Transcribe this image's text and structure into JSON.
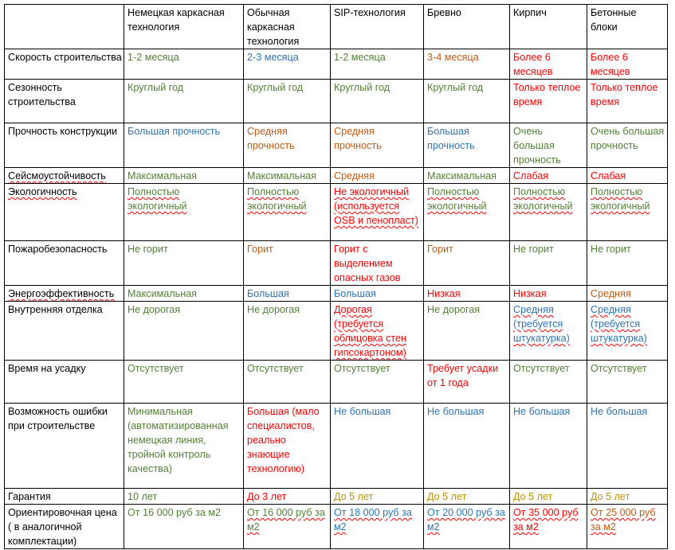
{
  "columns": [
    "",
    "Немецкая каркасная технология",
    "Обычная каркасная технология",
    "SIP-технология",
    "Бревно",
    "Кирпич",
    "Бетонные блоки"
  ],
  "rows": [
    {
      "label": "Скорость строительства",
      "cells": [
        {
          "text": "1-2 месяца",
          "color": "green"
        },
        {
          "text": "2-3 месяца",
          "color": "blue"
        },
        {
          "text": "1-2 месяца",
          "color": "green"
        },
        {
          "text": "3-4 месяца",
          "color": "orange"
        },
        {
          "text": "Более 6 месяцев",
          "color": "red"
        },
        {
          "text": "Более 6 месяцев",
          "color": "red"
        }
      ]
    },
    {
      "label": "Сезонность строительства",
      "cells": [
        {
          "text": "Круглый год",
          "color": "green"
        },
        {
          "text": "Круглый год",
          "color": "green"
        },
        {
          "text": "Круглый год",
          "color": "green"
        },
        {
          "text": "Круглый год",
          "color": "green"
        },
        {
          "text": "Только теплое время",
          "color": "red"
        },
        {
          "text": "Только теплое время",
          "color": "red"
        }
      ]
    },
    {
      "label": "Прочность конструкции",
      "cells": [
        {
          "text": "Большая прочность",
          "color": "blue"
        },
        {
          "text": "Средняя прочность",
          "color": "orange"
        },
        {
          "text": "Средняя прочность",
          "color": "orange"
        },
        {
          "text": "Большая прочность",
          "color": "blue"
        },
        {
          "text": "Очень большая прочность",
          "color": "green"
        },
        {
          "text": "Очень большая прочность",
          "color": "green"
        }
      ]
    },
    {
      "label": "Сейсмоустойчивость",
      "cells": [
        {
          "text": "Максимальная",
          "color": "green"
        },
        {
          "text": "Максимальная",
          "color": "green"
        },
        {
          "text": "Средняя",
          "color": "orange"
        },
        {
          "text": "Максимальная",
          "color": "green"
        },
        {
          "text": "Слабая",
          "color": "red"
        },
        {
          "text": "Слабая",
          "color": "red"
        }
      ]
    },
    {
      "label": "Экологичность",
      "cells": [
        {
          "text": "Полностью экологичный",
          "color": "green"
        },
        {
          "text": "Полностью экологичный",
          "color": "green"
        },
        {
          "text": "Не экологичный (используется OSB и пенопласт)",
          "color": "red"
        },
        {
          "text": "Полностью экологичный",
          "color": "green"
        },
        {
          "text": "Полностью экологичный",
          "color": "green"
        },
        {
          "text": "Полностью экологичный",
          "color": "green"
        }
      ]
    },
    {
      "label": "Пожаробезопасность",
      "cells": [
        {
          "text": "Не горит",
          "color": "green"
        },
        {
          "text": "Горит",
          "color": "orange"
        },
        {
          "text": "Горит с выделением опасных газов",
          "color": "red"
        },
        {
          "text": "Горит",
          "color": "orange"
        },
        {
          "text": "Не горит",
          "color": "green"
        },
        {
          "text": "Не горит",
          "color": "green"
        }
      ]
    },
    {
      "label": "Энергоэффективность",
      "cells": [
        {
          "text": "Максимальная",
          "color": "green"
        },
        {
          "text": "Большая",
          "color": "blue"
        },
        {
          "text": "Большая",
          "color": "blue"
        },
        {
          "text": "Низкая",
          "color": "red"
        },
        {
          "text": "Низкая",
          "color": "red"
        },
        {
          "text": "Средняя",
          "color": "orange"
        }
      ]
    },
    {
      "label": "Внутренняя отделка",
      "cells": [
        {
          "text": "Не дорогая",
          "color": "green"
        },
        {
          "text": "Не дорогая",
          "color": "green"
        },
        {
          "text": "Дорогая (требуется облицовка стен гипсокартоном)",
          "color": "red"
        },
        {
          "text": "Не дорогая",
          "color": "green"
        },
        {
          "text": "Средняя (требуется штукатурка)",
          "color": "blue"
        },
        {
          "text": "Средняя (требуется штукатурка)",
          "color": "blue"
        }
      ]
    },
    {
      "label": "Время на усадку",
      "cells": [
        {
          "text": "Отсутствует",
          "color": "green"
        },
        {
          "text": "Отсутствует",
          "color": "green"
        },
        {
          "text": "Отсутствует",
          "color": "green"
        },
        {
          "text": "Требует усадки от 1 года",
          "color": "red"
        },
        {
          "text": "Отсутствует",
          "color": "green"
        },
        {
          "text": "Отсутствует",
          "color": "green"
        }
      ]
    },
    {
      "label": "Возможность ошибки при строительстве",
      "cells": [
        {
          "text": "Минимальная (автоматизированная немецкая линия, тройной контроль качества)",
          "color": "green"
        },
        {
          "text": "Большая (мало специалистов, реально знающие технологию)",
          "color": "red"
        },
        {
          "text": "Не большая",
          "color": "blue"
        },
        {
          "text": "Не большая",
          "color": "blue"
        },
        {
          "text": "Не большая",
          "color": "blue"
        },
        {
          "text": "Не большая",
          "color": "blue"
        }
      ]
    },
    {
      "label": "Гарантия",
      "cells": [
        {
          "text": "10 лет",
          "color": "green"
        },
        {
          "text": "До 3 лет",
          "color": "red"
        },
        {
          "text": "До 5 лет",
          "color": "gold"
        },
        {
          "text": "До 5 лет",
          "color": "gold"
        },
        {
          "text": "До 5 лет",
          "color": "gold"
        },
        {
          "text": "До 5 лет",
          "color": "gold"
        }
      ]
    },
    {
      "label": "Ориентировочная цена ( в аналогичной комплектации)",
      "cells": [
        {
          "text": "От 16 000 руб за м2",
          "color": "green"
        },
        {
          "text": "От 16 000 руб за м2",
          "color": "green"
        },
        {
          "text": "От 18 000 руб за м2",
          "color": "blue"
        },
        {
          "text": "От 20 000 руб за м2",
          "color": "blue"
        },
        {
          "text": "От 35 000 руб за м2",
          "color": "red"
        },
        {
          "text": "От 25 000 руб за м2",
          "color": "orange"
        }
      ]
    }
  ],
  "palette": {
    "green": "#538135",
    "blue": "#2e74b5",
    "orange": "#c55a11",
    "red": "#ff0000",
    "gold": "#bf9000",
    "black": "#000000"
  }
}
